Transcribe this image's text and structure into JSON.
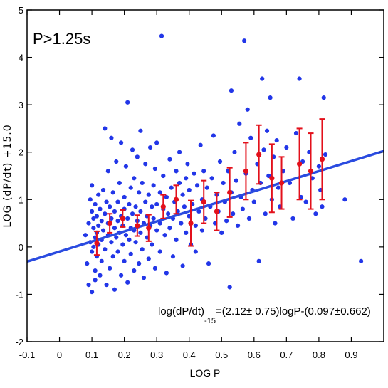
{
  "chart_data": {
    "type": "scatter",
    "xlabel": "LOG P",
    "ylabel": "LOG (dP/dt) +15.0",
    "xlim": [
      -0.1,
      1.0
    ],
    "ylim": [
      -2,
      5
    ],
    "xticks": [
      -0.1,
      0,
      0.1,
      0.2,
      0.3,
      0.4,
      0.5,
      0.6,
      0.7,
      0.8,
      0.9
    ],
    "xtick_labels": [
      "-0.1",
      "0",
      "0.1",
      "0.2",
      "0.3",
      "0.4",
      "0.5",
      "0.6",
      "0.7",
      "0.8",
      "0.9"
    ],
    "yticks": [
      -2,
      -1,
      0,
      1,
      2,
      3,
      4,
      5
    ],
    "ytick_labels": [
      "-2",
      "-1",
      "0",
      "1",
      "2",
      "3",
      "4",
      "5"
    ],
    "annotation_panel": "P>1.25s",
    "equation": {
      "lead": "log(dP/dt)",
      "sub": "-15",
      "rest": "=(2.12± 0.75)logP-(0.097±0.662)"
    },
    "colors": {
      "points": "#2236e8",
      "binned": "#e3101b",
      "fit": "#2a4be0"
    },
    "fit_line": {
      "slope": 2.12,
      "intercept": -0.097
    },
    "binned_means": [
      {
        "x": 0.115,
        "y": 0.08,
        "err": 0.25
      },
      {
        "x": 0.155,
        "y": 0.5,
        "err": 0.2
      },
      {
        "x": 0.195,
        "y": 0.6,
        "err": 0.18
      },
      {
        "x": 0.24,
        "y": 0.45,
        "err": 0.22
      },
      {
        "x": 0.275,
        "y": 0.4,
        "err": 0.28
      },
      {
        "x": 0.32,
        "y": 0.85,
        "err": 0.25
      },
      {
        "x": 0.36,
        "y": 1.0,
        "err": 0.3
      },
      {
        "x": 0.405,
        "y": 0.5,
        "err": 0.48
      },
      {
        "x": 0.445,
        "y": 0.95,
        "err": 0.45
      },
      {
        "x": 0.485,
        "y": 0.75,
        "err": 0.4
      },
      {
        "x": 0.525,
        "y": 1.15,
        "err": 0.52
      },
      {
        "x": 0.575,
        "y": 1.6,
        "err": 0.6
      },
      {
        "x": 0.615,
        "y": 1.95,
        "err": 0.62
      },
      {
        "x": 0.655,
        "y": 1.45,
        "err": 0.72
      },
      {
        "x": 0.685,
        "y": 1.35,
        "err": 0.55
      },
      {
        "x": 0.74,
        "y": 1.75,
        "err": 0.75
      },
      {
        "x": 0.775,
        "y": 1.6,
        "err": 0.8
      },
      {
        "x": 0.81,
        "y": 1.85,
        "err": 0.85
      }
    ],
    "points": [
      [
        0.08,
        0.25
      ],
      [
        0.085,
        -0.35
      ],
      [
        0.09,
        0.5
      ],
      [
        0.09,
        -0.8
      ],
      [
        0.095,
        0.1
      ],
      [
        0.095,
        1.0
      ],
      [
        0.1,
        0.75
      ],
      [
        0.1,
        -0.1
      ],
      [
        0.1,
        1.3
      ],
      [
        0.1,
        -0.95
      ],
      [
        0.105,
        0.4
      ],
      [
        0.105,
        0.0
      ],
      [
        0.105,
        0.6
      ],
      [
        0.11,
        -0.5
      ],
      [
        0.11,
        0.9
      ],
      [
        0.11,
        0.2
      ],
      [
        0.11,
        -0.7
      ],
      [
        0.115,
        0.3
      ],
      [
        0.115,
        0.65
      ],
      [
        0.115,
        -0.2
      ],
      [
        0.12,
        1.1
      ],
      [
        0.12,
        0.05
      ],
      [
        0.12,
        0.45
      ],
      [
        0.125,
        -0.6
      ],
      [
        0.125,
        0.8
      ],
      [
        0.13,
        0.15
      ],
      [
        0.13,
        0.55
      ],
      [
        0.13,
        -0.3
      ],
      [
        0.135,
        1.2
      ],
      [
        0.135,
        0.35
      ],
      [
        0.14,
        2.5
      ],
      [
        0.14,
        0.7
      ],
      [
        0.14,
        -0.05
      ],
      [
        0.145,
        0.95
      ],
      [
        0.145,
        -0.8
      ],
      [
        0.15,
        0.25
      ],
      [
        0.15,
        1.6
      ],
      [
        0.15,
        0.5
      ],
      [
        0.155,
        -0.45
      ],
      [
        0.155,
        0.85
      ],
      [
        0.16,
        0.1
      ],
      [
        0.16,
        2.3
      ],
      [
        0.16,
        0.6
      ],
      [
        0.165,
        -0.2
      ],
      [
        0.165,
        1.15
      ],
      [
        0.17,
        0.4
      ],
      [
        0.17,
        0.75
      ],
      [
        0.17,
        -0.9
      ],
      [
        0.175,
        0.2
      ],
      [
        0.175,
        1.8
      ],
      [
        0.18,
        0.55
      ],
      [
        0.18,
        -0.1
      ],
      [
        0.18,
        0.95
      ],
      [
        0.185,
        0.3
      ],
      [
        0.185,
        1.35
      ],
      [
        0.19,
        -0.6
      ],
      [
        0.19,
        0.65
      ],
      [
        0.19,
        2.2
      ],
      [
        0.195,
        0.45
      ],
      [
        0.195,
        0.05
      ],
      [
        0.2,
        1.05
      ],
      [
        0.2,
        -0.3
      ],
      [
        0.2,
        0.8
      ],
      [
        0.205,
        0.25
      ],
      [
        0.205,
        1.7
      ],
      [
        0.21,
        0.6
      ],
      [
        0.21,
        -0.75
      ],
      [
        0.21,
        3.05
      ],
      [
        0.215,
        0.9
      ],
      [
        0.215,
        0.15
      ],
      [
        0.22,
        1.25
      ],
      [
        0.22,
        0.4
      ],
      [
        0.22,
        -0.15
      ],
      [
        0.225,
        2.05
      ],
      [
        0.225,
        0.7
      ],
      [
        0.23,
        0.35
      ],
      [
        0.23,
        1.45
      ],
      [
        0.23,
        -0.5
      ],
      [
        0.235,
        0.85
      ],
      [
        0.235,
        0.1
      ],
      [
        0.24,
        1.9
      ],
      [
        0.24,
        0.55
      ],
      [
        0.245,
        -0.35
      ],
      [
        0.245,
        1.15
      ],
      [
        0.25,
        0.3
      ],
      [
        0.25,
        2.45
      ],
      [
        0.25,
        0.75
      ],
      [
        0.255,
        -0.05
      ],
      [
        0.255,
        1.35
      ],
      [
        0.26,
        0.5
      ],
      [
        0.26,
        -0.65
      ],
      [
        0.265,
        0.95
      ],
      [
        0.265,
        1.75
      ],
      [
        0.27,
        0.2
      ],
      [
        0.27,
        0.65
      ],
      [
        0.275,
        1.1
      ],
      [
        0.275,
        -0.25
      ],
      [
        0.28,
        0.45
      ],
      [
        0.28,
        2.1
      ],
      [
        0.285,
        0.85
      ],
      [
        0.285,
        0.05
      ],
      [
        0.29,
        1.3
      ],
      [
        0.29,
        0.6
      ],
      [
        0.295,
        -0.45
      ],
      [
        0.295,
        1.65
      ],
      [
        0.3,
        0.9
      ],
      [
        0.3,
        0.35
      ],
      [
        0.3,
        2.2
      ],
      [
        0.31,
        1.15
      ],
      [
        0.31,
        0.5
      ],
      [
        0.31,
        -0.1
      ],
      [
        0.315,
        4.45
      ],
      [
        0.32,
        0.8
      ],
      [
        0.32,
        1.5
      ],
      [
        0.325,
        0.25
      ],
      [
        0.33,
        1.05
      ],
      [
        0.33,
        -0.55
      ],
      [
        0.335,
        0.7
      ],
      [
        0.34,
        1.85
      ],
      [
        0.34,
        0.4
      ],
      [
        0.345,
        1.25
      ],
      [
        0.35,
        0.6
      ],
      [
        0.35,
        -0.2
      ],
      [
        0.355,
        0.95
      ],
      [
        0.36,
        1.6
      ],
      [
        0.36,
        0.15
      ],
      [
        0.365,
        0.75
      ],
      [
        0.37,
        1.35
      ],
      [
        0.37,
        2.0
      ],
      [
        0.375,
        0.5
      ],
      [
        0.38,
        1.1
      ],
      [
        0.38,
        -0.4
      ],
      [
        0.385,
        0.85
      ],
      [
        0.39,
        1.45
      ],
      [
        0.39,
        0.3
      ],
      [
        0.395,
        1.75
      ],
      [
        0.4,
        0.65
      ],
      [
        0.4,
        1.2
      ],
      [
        0.405,
        0.05
      ],
      [
        0.41,
        0.9
      ],
      [
        0.415,
        1.55
      ],
      [
        0.42,
        0.45
      ],
      [
        0.42,
        -0.1
      ],
      [
        0.425,
        1.3
      ],
      [
        0.43,
        0.75
      ],
      [
        0.435,
        2.15
      ],
      [
        0.44,
        1.0
      ],
      [
        0.44,
        0.35
      ],
      [
        0.445,
        1.6
      ],
      [
        0.45,
        0.6
      ],
      [
        0.455,
        1.25
      ],
      [
        0.46,
        -0.35
      ],
      [
        0.465,
        0.85
      ],
      [
        0.47,
        1.45
      ],
      [
        0.475,
        2.35
      ],
      [
        0.48,
        0.5
      ],
      [
        0.485,
        1.1
      ],
      [
        0.49,
        0.75
      ],
      [
        0.495,
        1.8
      ],
      [
        0.5,
        0.3
      ],
      [
        0.505,
        1.35
      ],
      [
        0.51,
        0.95
      ],
      [
        0.515,
        0.55
      ],
      [
        0.52,
        1.6
      ],
      [
        0.525,
        -0.85
      ],
      [
        0.53,
        1.15
      ],
      [
        0.53,
        3.3
      ],
      [
        0.535,
        0.7
      ],
      [
        0.54,
        2.0
      ],
      [
        0.545,
        1.4
      ],
      [
        0.55,
        0.45
      ],
      [
        0.555,
        2.6
      ],
      [
        0.56,
        1.05
      ],
      [
        0.565,
        0.8
      ],
      [
        0.57,
        4.35
      ],
      [
        0.575,
        1.55
      ],
      [
        0.58,
        2.9
      ],
      [
        0.585,
        0.6
      ],
      [
        0.59,
        2.3
      ],
      [
        0.595,
        1.2
      ],
      [
        0.6,
        0.95
      ],
      [
        0.61,
        1.75
      ],
      [
        0.615,
        -0.3
      ],
      [
        0.62,
        1.35
      ],
      [
        0.625,
        3.55
      ],
      [
        0.63,
        2.05
      ],
      [
        0.635,
        0.7
      ],
      [
        0.64,
        2.45
      ],
      [
        0.645,
        1.5
      ],
      [
        0.65,
        3.15
      ],
      [
        0.655,
        1.0
      ],
      [
        0.66,
        1.9
      ],
      [
        0.665,
        0.5
      ],
      [
        0.67,
        2.25
      ],
      [
        0.675,
        1.25
      ],
      [
        0.68,
        0.85
      ],
      [
        0.69,
        1.6
      ],
      [
        0.7,
        2.1
      ],
      [
        0.71,
        1.35
      ],
      [
        0.72,
        0.6
      ],
      [
        0.73,
        2.4
      ],
      [
        0.74,
        3.55
      ],
      [
        0.745,
        1.05
      ],
      [
        0.75,
        1.8
      ],
      [
        0.76,
        0.95
      ],
      [
        0.77,
        2.0
      ],
      [
        0.78,
        1.45
      ],
      [
        0.79,
        0.7
      ],
      [
        0.8,
        1.7
      ],
      [
        0.805,
        1.2
      ],
      [
        0.81,
        0.85
      ],
      [
        0.815,
        3.15
      ],
      [
        0.82,
        1.95
      ],
      [
        0.88,
        1.0
      ],
      [
        0.93,
        -0.3
      ]
    ]
  }
}
